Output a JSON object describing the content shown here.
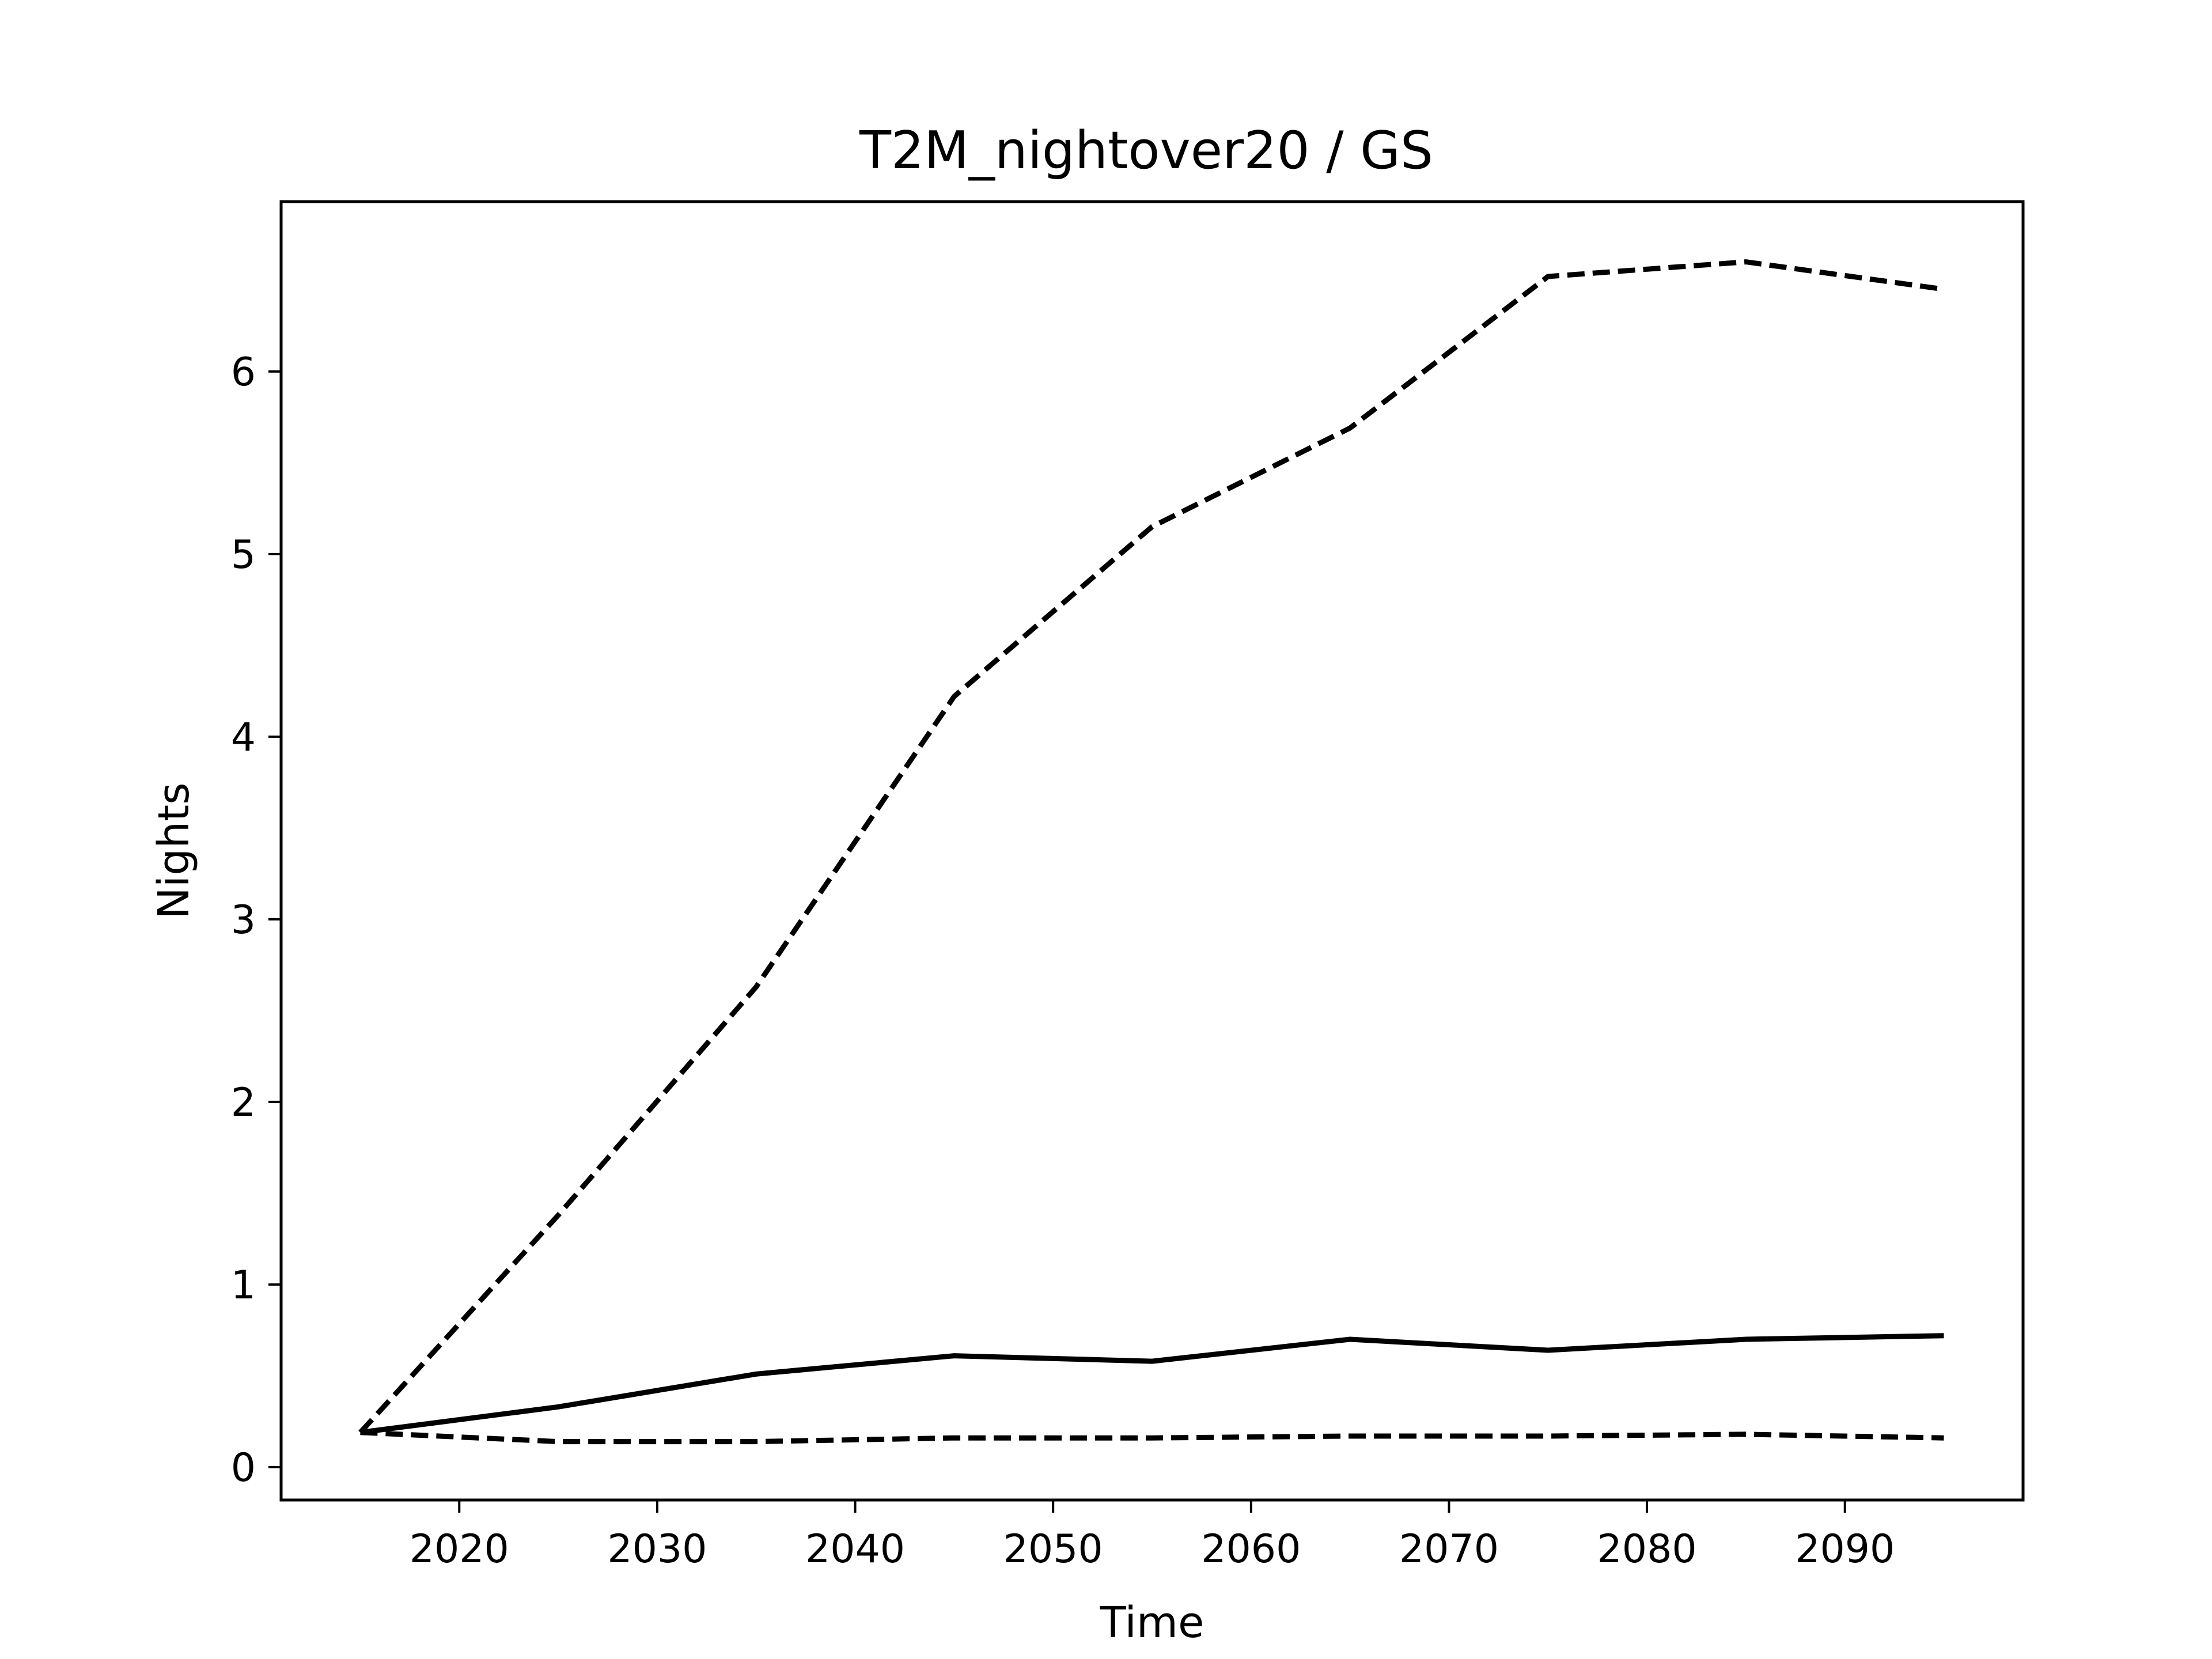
{
  "chart_data": {
    "type": "line",
    "title": "T2M_nightover20 / GS",
    "xlabel": "Time",
    "ylabel": "Nights",
    "xlim": [
      2011,
      2099
    ],
    "ylim": [
      -0.18,
      6.93
    ],
    "xticks": [
      2020,
      2030,
      2040,
      2050,
      2060,
      2070,
      2080,
      2090
    ],
    "yticks": [
      0,
      1,
      2,
      3,
      4,
      5,
      6
    ],
    "x": [
      2015,
      2025,
      2035,
      2045,
      2055,
      2065,
      2075,
      2085,
      2095
    ],
    "series": [
      {
        "style": "dashed",
        "color": "#000000",
        "values": [
          0.19,
          1.38,
          2.63,
          4.22,
          5.15,
          5.69,
          6.52,
          6.6,
          6.45
        ]
      },
      {
        "style": "solid",
        "color": "#000000",
        "values": [
          0.19,
          0.33,
          0.51,
          0.61,
          0.58,
          0.7,
          0.64,
          0.7,
          0.72
        ]
      },
      {
        "style": "dashed",
        "color": "#000000",
        "values": [
          0.19,
          0.14,
          0.14,
          0.16,
          0.16,
          0.17,
          0.17,
          0.18,
          0.16
        ]
      }
    ],
    "grid": false,
    "legend": "none"
  }
}
